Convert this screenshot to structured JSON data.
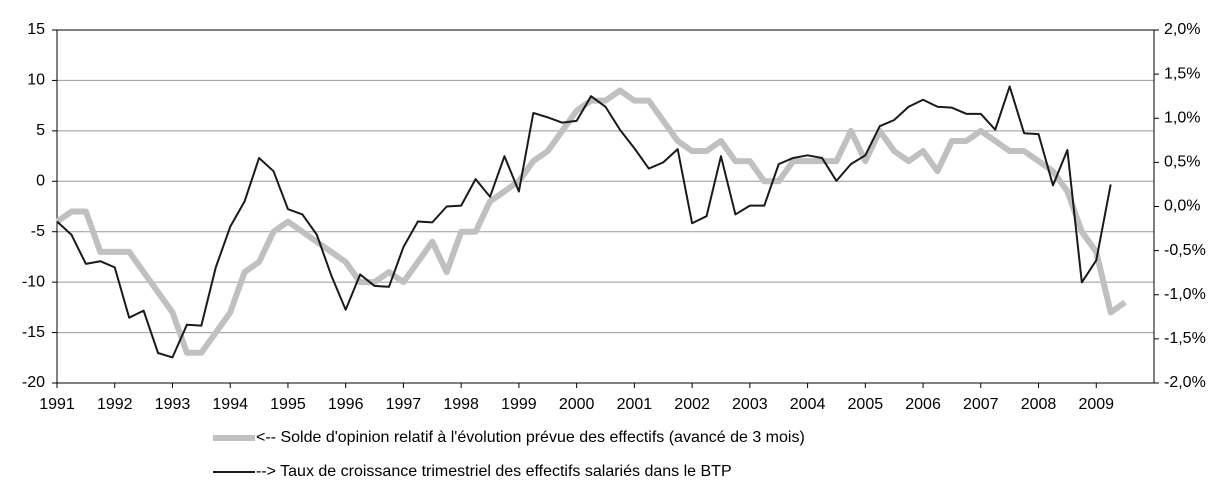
{
  "chart_data": {
    "type": "line",
    "x": [
      1991,
      1991.25,
      1991.5,
      1991.75,
      1992,
      1992.25,
      1992.5,
      1992.75,
      1993,
      1993.25,
      1993.5,
      1993.75,
      1994,
      1994.25,
      1994.5,
      1994.75,
      1995,
      1995.25,
      1995.5,
      1995.75,
      1996,
      1996.25,
      1996.5,
      1996.75,
      1997,
      1997.25,
      1997.5,
      1997.75,
      1998,
      1998.25,
      1998.5,
      1998.75,
      1999,
      1999.25,
      1999.5,
      1999.75,
      2000,
      2000.25,
      2000.5,
      2000.75,
      2001,
      2001.25,
      2001.5,
      2001.75,
      2002,
      2002.25,
      2002.5,
      2002.75,
      2003,
      2003.25,
      2003.5,
      2003.75,
      2004,
      2004.25,
      2004.5,
      2004.75,
      2005,
      2005.25,
      2005.5,
      2005.75,
      2006,
      2006.25,
      2006.5,
      2006.75,
      2007,
      2007.25,
      2007.5,
      2007.75,
      2008,
      2008.25,
      2008.5,
      2008.75,
      2009,
      2009.25,
      2009.5
    ],
    "xlim": [
      1991,
      2010
    ],
    "xticks": [
      1991,
      1992,
      1993,
      1994,
      1995,
      1996,
      1997,
      1998,
      1999,
      2000,
      2001,
      2002,
      2003,
      2004,
      2005,
      2006,
      2007,
      2008,
      2009
    ],
    "ylim": [
      -20,
      15
    ],
    "yticks": [
      -20,
      -15,
      -10,
      -5,
      0,
      5,
      10,
      15
    ],
    "y2lim": [
      -2,
      2
    ],
    "y2ticks": [
      {
        "value": -2,
        "label": "-2,0%"
      },
      {
        "value": -1.5,
        "label": "-1,5%"
      },
      {
        "value": -1,
        "label": "-1,0%"
      },
      {
        "value": -0.5,
        "label": "-0,5%"
      },
      {
        "value": 0,
        "label": "0,0%"
      },
      {
        "value": 0.5,
        "label": "0,5%"
      },
      {
        "value": 1,
        "label": "1,0%"
      },
      {
        "value": 1.5,
        "label": "1,5%"
      },
      {
        "value": 2,
        "label": "2,0%"
      }
    ],
    "grid": true,
    "series": [
      {
        "name": "<-- Solde d'opinion relatif à l'évolution prévue des effectifs (avancé de 3 mois)",
        "color": "#c0c0c0",
        "width": 6,
        "values": [
          -4,
          -3,
          -3,
          -7,
          -7,
          -7,
          -9,
          -11,
          -13,
          -17,
          -17,
          -15,
          -13,
          -9,
          -8,
          -5,
          -4,
          -5,
          -6,
          -7,
          -8,
          -10,
          -10,
          -9,
          -10,
          -8,
          -6,
          -9,
          -5,
          -5,
          -2,
          -1,
          0,
          2,
          3,
          5,
          7,
          8,
          8,
          9,
          8,
          8,
          6,
          4,
          3,
          3,
          4,
          2,
          2,
          0,
          0,
          2,
          2,
          2,
          2,
          5,
          2,
          5,
          3,
          2,
          3,
          1,
          4,
          4,
          5,
          4,
          3,
          3,
          2,
          1,
          -1,
          -5,
          -7,
          -13,
          -12
        ]
      },
      {
        "name": "--> Taux de croissance trimestriel des effectifs salariés dans le BTP",
        "color": "#1a1a1a",
        "width": 2,
        "axis": "y2",
        "values": [
          -0.17,
          -0.32,
          -0.65,
          -0.62,
          -0.69,
          -1.26,
          -1.18,
          -1.66,
          -1.71,
          -1.34,
          -1.35,
          -0.69,
          -0.23,
          0.06,
          0.55,
          0.4,
          -0.03,
          -0.09,
          -0.32,
          -0.78,
          -1.17,
          -0.77,
          -0.9,
          -0.91,
          -0.46,
          -0.17,
          -0.18,
          0,
          0.01,
          0.31,
          0.11,
          0.57,
          0.17,
          1.06,
          1.01,
          0.95,
          0.97,
          1.25,
          1.13,
          0.87,
          0.66,
          0.43,
          0.5,
          0.65,
          -0.19,
          -0.11,
          0.57,
          -0.09,
          0.01,
          0.01,
          0.48,
          0.55,
          0.58,
          0.55,
          0.29,
          0.48,
          0.58,
          0.91,
          0.98,
          1.13,
          1.21,
          1.13,
          1.12,
          1.05,
          1.05,
          0.87,
          1.36,
          0.83,
          0.82,
          0.24,
          0.64,
          -0.86,
          -0.61,
          0.25,
          null
        ]
      }
    ]
  }
}
